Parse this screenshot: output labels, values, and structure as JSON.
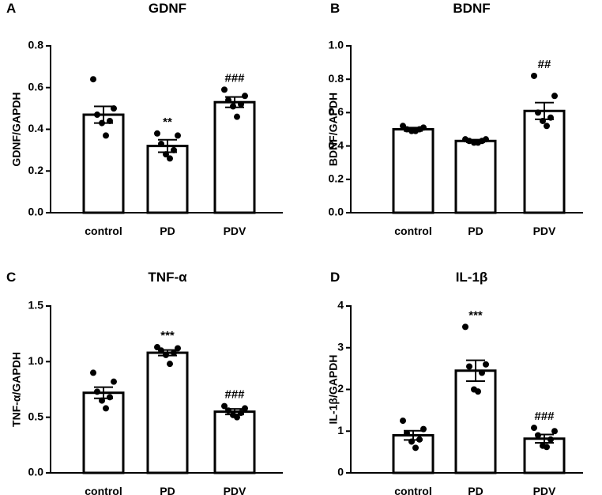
{
  "chart_data": [
    {
      "type": "bar",
      "letter": "A",
      "title": "GDNF",
      "ylabel": "GDNF/GAPDH",
      "ylim": [
        0,
        0.8
      ],
      "yticks": [
        "0.0",
        "0.2",
        "0.4",
        "0.6",
        "0.8"
      ],
      "categories": [
        "control",
        "PD",
        "PDV"
      ],
      "values": [
        0.47,
        0.32,
        0.53
      ],
      "sem": [
        0.04,
        0.03,
        0.025
      ],
      "points": [
        [
          0.64,
          0.5,
          0.47,
          0.44,
          0.43,
          0.37
        ],
        [
          0.38,
          0.37,
          0.33,
          0.3,
          0.28,
          0.26
        ],
        [
          0.59,
          0.56,
          0.54,
          0.52,
          0.51,
          0.46
        ]
      ],
      "annotations": [
        "",
        "**",
        "###"
      ]
    },
    {
      "type": "bar",
      "letter": "B",
      "title": "BDNF",
      "ylabel": "BDNF/GAPDH",
      "ylim": [
        0,
        1.0
      ],
      "yticks": [
        "0.0",
        "0.2",
        "0.4",
        "0.6",
        "0.8",
        "1.0"
      ],
      "categories": [
        "control",
        "PD",
        "PDV"
      ],
      "values": [
        0.5,
        0.43,
        0.61
      ],
      "sem": [
        0.01,
        0.008,
        0.05
      ],
      "points": [
        [
          0.52,
          0.51,
          0.5,
          0.5,
          0.49,
          0.49
        ],
        [
          0.44,
          0.44,
          0.43,
          0.43,
          0.42,
          0.42
        ],
        [
          0.82,
          0.7,
          0.6,
          0.57,
          0.55,
          0.52
        ]
      ],
      "annotations": [
        "",
        "",
        "##"
      ]
    },
    {
      "type": "bar",
      "letter": "C",
      "title": "TNF-α",
      "ylabel": "TNF-α/GAPDH",
      "ylim": [
        0,
        1.5
      ],
      "yticks": [
        "0.0",
        "0.5",
        "1.0",
        "1.5"
      ],
      "categories": [
        "control",
        "PD",
        "PDV"
      ],
      "values": [
        0.72,
        1.08,
        0.55
      ],
      "sem": [
        0.05,
        0.025,
        0.025
      ],
      "points": [
        [
          0.9,
          0.82,
          0.73,
          0.68,
          0.65,
          0.58
        ],
        [
          1.13,
          1.12,
          1.1,
          1.08,
          1.06,
          0.98
        ],
        [
          0.6,
          0.58,
          0.56,
          0.54,
          0.52,
          0.5
        ]
      ],
      "annotations": [
        "",
        "***",
        "###"
      ]
    },
    {
      "type": "bar",
      "letter": "D",
      "title": "IL-1β",
      "ylabel": "IL-1β/GAPDH",
      "ylim": [
        0,
        4
      ],
      "yticks": [
        "0",
        "1",
        "2",
        "3",
        "4"
      ],
      "categories": [
        "control",
        "PD",
        "PDV"
      ],
      "values": [
        0.9,
        2.45,
        0.82
      ],
      "sem": [
        0.11,
        0.25,
        0.1
      ],
      "points": [
        [
          1.25,
          1.05,
          0.95,
          0.8,
          0.75,
          0.6
        ],
        [
          3.5,
          2.6,
          2.55,
          2.4,
          2.0,
          1.95
        ],
        [
          1.08,
          1.0,
          0.9,
          0.8,
          0.65,
          0.62
        ]
      ],
      "annotations": [
        "",
        "***",
        "###"
      ]
    }
  ]
}
